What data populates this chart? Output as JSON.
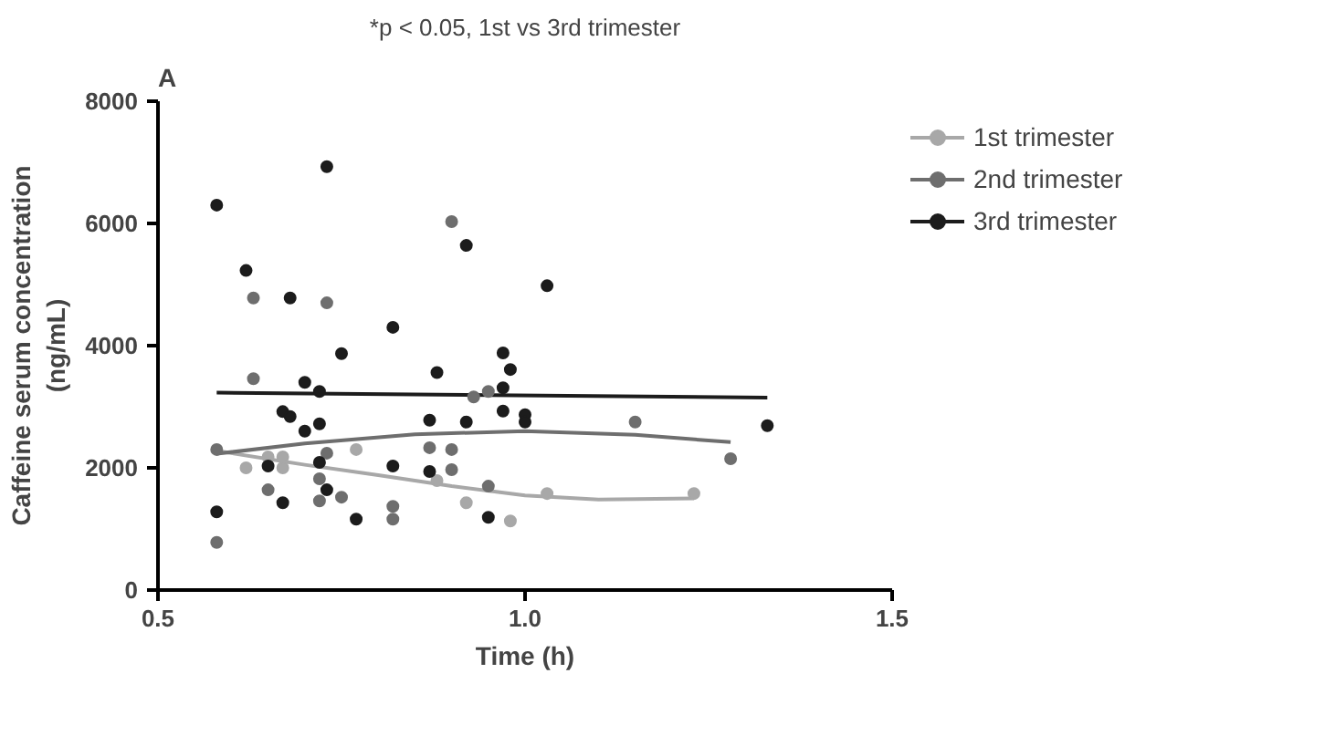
{
  "chart_data": {
    "type": "scatter",
    "title": "*p < 0.05, 1st vs 3rd trimester",
    "xlabel": "Time (h)",
    "ylabel": "Caffeine serum concentration\n(ng/mL)",
    "annotations": [
      "A"
    ],
    "xlim": [
      0.5,
      1.5
    ],
    "xticks": [
      0.5,
      {
        "value": 1.0,
        "label": "1.0"
      },
      1.5
    ],
    "ylim": [
      0,
      8000
    ],
    "yticks": [
      0,
      2000,
      4000,
      6000,
      8000
    ],
    "grid": false,
    "legend": "right",
    "marker": "circle",
    "series": [
      {
        "name": "1st trimester",
        "color": "#a8a8a8",
        "x": [
          0.62,
          0.67,
          0.67,
          0.65,
          0.77,
          0.88,
          0.92,
          0.98,
          1.03,
          1.23
        ],
        "values": [
          2000,
          2000,
          2180,
          2180,
          2300,
          1790,
          1430,
          1130,
          1580,
          1580
        ]
      },
      {
        "name": "2nd trimester",
        "color": "#6e6e6e",
        "x": [
          0.63,
          0.73,
          0.63,
          0.58,
          0.73,
          0.65,
          0.72,
          0.72,
          0.75,
          0.82,
          0.82,
          0.58,
          0.9,
          0.93,
          0.95,
          0.87,
          0.9,
          0.9,
          0.95,
          1.15,
          1.28
        ],
        "values": [
          4780,
          4700,
          3460,
          2300,
          2240,
          1640,
          1820,
          1460,
          1520,
          1370,
          1160,
          780,
          6030,
          3160,
          3250,
          2330,
          2300,
          1970,
          1700,
          2750,
          2150
        ]
      },
      {
        "name": "3rd trimester",
        "color": "#1c1c1c",
        "x": [
          0.58,
          0.62,
          0.68,
          0.73,
          0.82,
          0.75,
          0.7,
          0.72,
          0.67,
          0.68,
          0.72,
          0.7,
          0.65,
          0.72,
          0.73,
          0.67,
          0.77,
          0.82,
          0.58,
          0.92,
          1.03,
          0.88,
          0.97,
          0.98,
          0.97,
          0.97,
          1.0,
          1.0,
          0.87,
          0.92,
          0.87,
          0.95,
          1.33
        ],
        "values": [
          6300,
          5230,
          4780,
          6930,
          4300,
          3870,
          3400,
          3250,
          2920,
          2840,
          2720,
          2600,
          2030,
          2090,
          1640,
          1430,
          1160,
          2030,
          1280,
          5640,
          4980,
          3560,
          3880,
          3610,
          3310,
          2930,
          2870,
          2750,
          2780,
          2750,
          1940,
          1190,
          2690
        ]
      },
      {
        "type": "line",
        "marker": "none",
        "color": "#a8a8a8",
        "x": [
          0.58,
          0.7,
          0.8,
          0.9,
          1.0,
          1.1,
          1.23
        ],
        "values": [
          2280,
          2050,
          1880,
          1700,
          1550,
          1480,
          1500
        ]
      },
      {
        "type": "line",
        "marker": "none",
        "color": "#6e6e6e",
        "x": [
          0.58,
          0.7,
          0.85,
          1.0,
          1.15,
          1.28
        ],
        "values": [
          2230,
          2400,
          2550,
          2600,
          2540,
          2420
        ]
      },
      {
        "type": "line",
        "marker": "none",
        "color": "#1c1c1c",
        "x": [
          0.58,
          1.33
        ],
        "values": [
          3230,
          3150
        ]
      }
    ]
  }
}
